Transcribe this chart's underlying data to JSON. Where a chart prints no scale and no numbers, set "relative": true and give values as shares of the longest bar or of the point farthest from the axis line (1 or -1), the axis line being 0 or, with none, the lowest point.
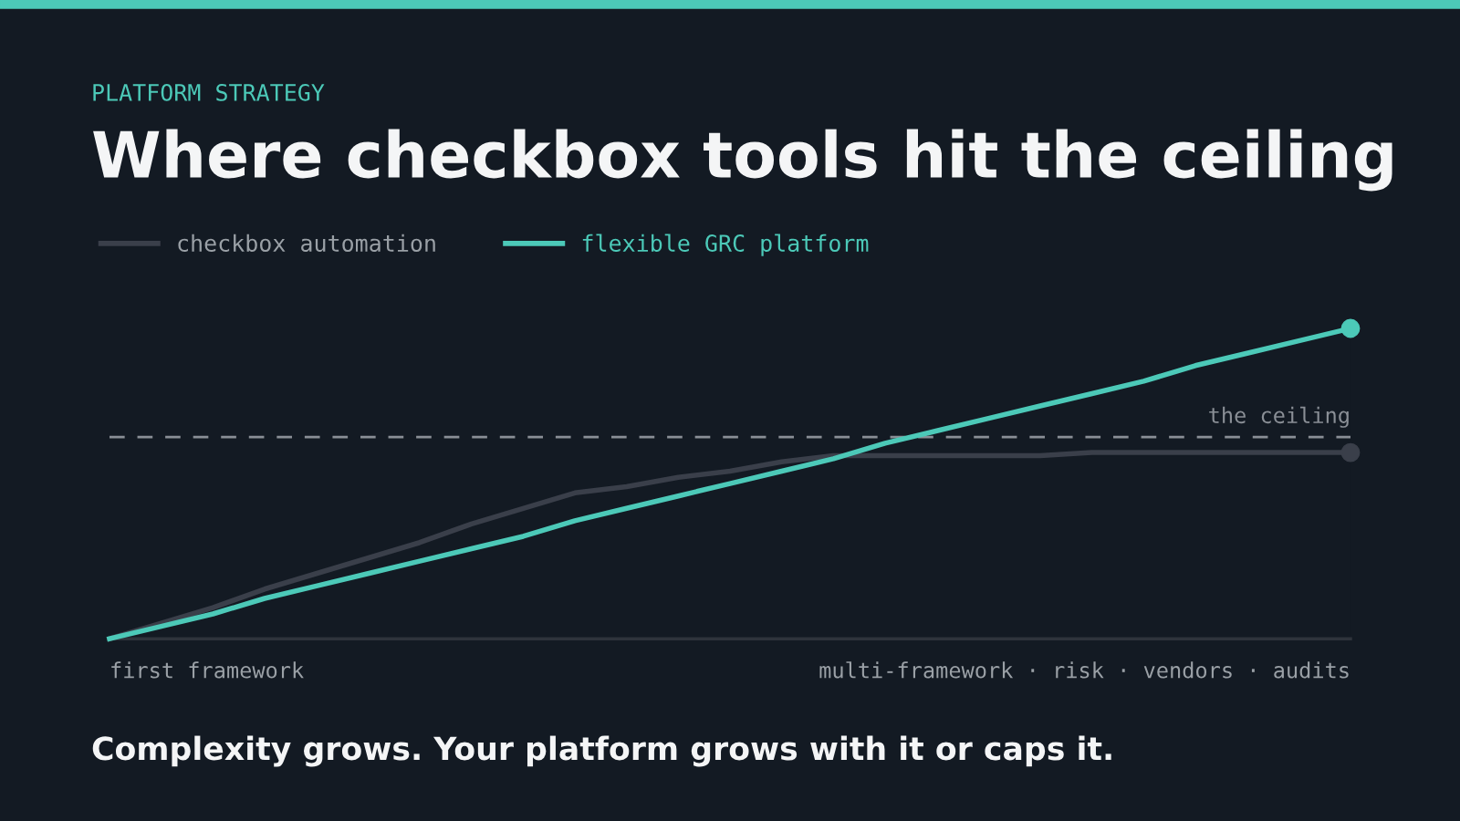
{
  "chart_data": {
    "type": "line",
    "subtitle": "PLATFORM STRATEGY",
    "title": "Where checkbox tools hit the ceiling",
    "relative": true,
    "legend": "top left",
    "grid": false,
    "line_style": "solid",
    "categories": [
      null,
      null,
      null,
      null,
      null,
      null,
      null,
      null,
      null,
      null,
      null,
      null,
      null,
      null,
      null,
      null,
      null,
      null,
      null,
      null,
      null,
      null,
      null,
      null,
      null
    ],
    "series": [
      {
        "name": "checkbox automation",
        "color": "#3a3f4a",
        "values": [
          0,
          0.05,
          0.1,
          0.16,
          0.21,
          0.26,
          0.31,
          0.37,
          0.42,
          0.47,
          0.49,
          0.52,
          0.54,
          0.57,
          0.59,
          0.59,
          0.59,
          0.59,
          0.59,
          0.6,
          0.6,
          0.6,
          0.6,
          0.6,
          0.6
        ]
      },
      {
        "name": "flexible GRC platform",
        "color": "#4cc9b8",
        "values": [
          0,
          0.04,
          0.08,
          0.13,
          0.17,
          0.21,
          0.25,
          0.29,
          0.33,
          0.38,
          0.42,
          0.46,
          0.5,
          0.54,
          0.58,
          0.63,
          0.67,
          0.71,
          0.75,
          0.79,
          0.83,
          0.88,
          0.92,
          0.96,
          1
        ]
      }
    ],
    "ref_lines": [
      {
        "axis": "y",
        "value": 0.65,
        "label": "the ceiling",
        "color": "#8a8f96",
        "line_style": "dashed"
      }
    ],
    "annotations": [
      "first framework",
      "multi-framework · risk · vendors · audits",
      "Complexity grows. Your platform grows with it or caps it."
    ]
  }
}
